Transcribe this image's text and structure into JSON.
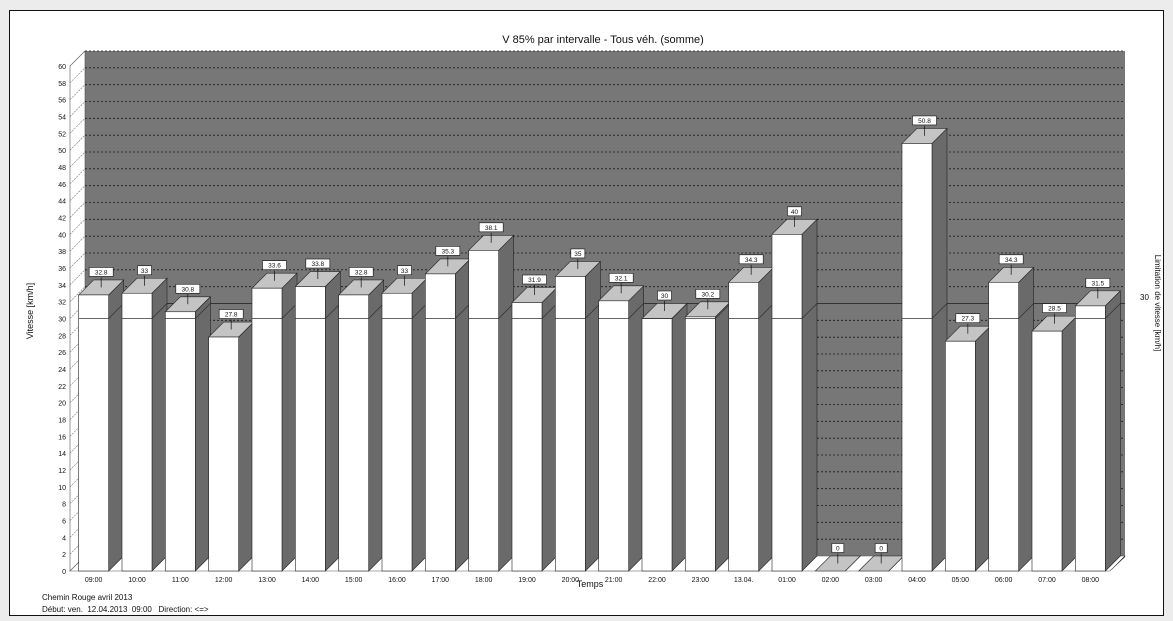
{
  "chart_data": {
    "type": "bar",
    "title": "V 85% par intervalle - Tous véh. (somme)",
    "xlabel": "Temps",
    "ylabel": "Vitesse [km/h]",
    "y2label": "Limitation de vitesse [km/h]",
    "ylim": [
      0,
      60
    ],
    "ytick_step": 2,
    "grid": true,
    "categories": [
      "09:00",
      "10:00",
      "11:00",
      "12:00",
      "13:00",
      "14:00",
      "15:00",
      "16:00",
      "17:00",
      "18:00",
      "19:00",
      "20:00",
      "21:00",
      "22:00",
      "23:00",
      "13.04.",
      "01:00",
      "02:00",
      "03:00",
      "04:00",
      "05:00",
      "06:00",
      "07:00",
      "08:00"
    ],
    "values": [
      32.8,
      33,
      30.8,
      27.8,
      33.6,
      33.8,
      32.8,
      33,
      35.3,
      38.1,
      31.9,
      35,
      32.1,
      30,
      30.2,
      34.3,
      40,
      0,
      0,
      50.8,
      27.3,
      34.3,
      28.5,
      31.5
    ],
    "data_labels": [
      "32.8",
      "33",
      "30.8",
      "27.8",
      "33.6",
      "33.8",
      "32.8",
      "33",
      "35.3",
      "38.1",
      "31.9",
      "35",
      "32.1",
      "30",
      "30.2",
      "34.3",
      "40",
      "0",
      "0",
      "50.8",
      "27.3",
      "34.3",
      "28.5",
      "31.5"
    ],
    "speed_limit": 30,
    "speed_limit_label": "30"
  },
  "footer": {
    "line1": "Chemin Rouge avril 2013",
    "line2": "Début: ven.  12.04.2013  09:00   Direction: <=>"
  },
  "colors": {
    "plot_background": "#777777",
    "bar_front": "#ffffff",
    "bar_top": "#c4c4c4",
    "bar_side": "#6a6a6a",
    "wall_side": "#ffffff",
    "floor": "#ffffff",
    "gridline": "#1a1a1a",
    "limit_line": "#333333"
  }
}
